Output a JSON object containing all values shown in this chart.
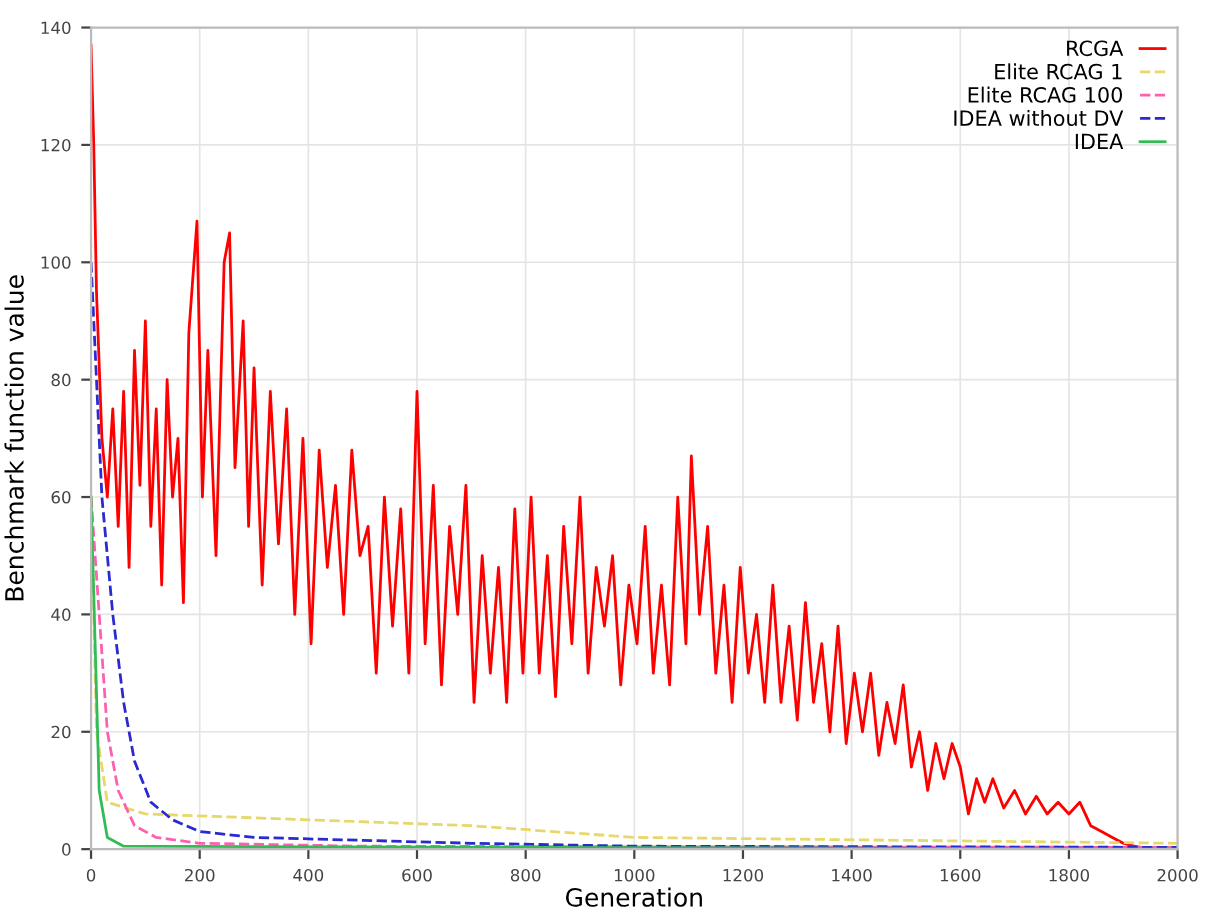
{
  "chart_data": {
    "type": "line",
    "xlabel": "Generation",
    "ylabel": "Benchmark function value",
    "xlim": [
      0,
      2000
    ],
    "xticks": [
      0,
      200,
      400,
      600,
      800,
      1000,
      1200,
      1400,
      1600,
      1800,
      2000
    ],
    "ylim": [
      0,
      140
    ],
    "yticks": [
      0,
      20,
      40,
      60,
      80,
      100,
      120,
      140
    ],
    "grid": true,
    "legend": "top right",
    "series": [
      {
        "name": "RCGA",
        "color": "#ff0000",
        "line_style": "solid",
        "x": [
          0,
          5,
          10,
          20,
          30,
          40,
          50,
          60,
          70,
          80,
          90,
          100,
          110,
          120,
          130,
          140,
          150,
          160,
          170,
          180,
          195,
          205,
          215,
          230,
          245,
          255,
          265,
          280,
          290,
          300,
          315,
          330,
          345,
          360,
          375,
          390,
          405,
          420,
          435,
          450,
          465,
          480,
          495,
          510,
          525,
          540,
          555,
          570,
          585,
          600,
          615,
          630,
          645,
          660,
          675,
          690,
          705,
          720,
          735,
          750,
          765,
          780,
          795,
          810,
          825,
          840,
          855,
          870,
          885,
          900,
          915,
          930,
          945,
          960,
          975,
          990,
          1005,
          1020,
          1035,
          1050,
          1065,
          1080,
          1095,
          1105,
          1120,
          1135,
          1150,
          1165,
          1180,
          1195,
          1210,
          1225,
          1240,
          1255,
          1270,
          1285,
          1300,
          1315,
          1330,
          1345,
          1360,
          1375,
          1390,
          1405,
          1420,
          1435,
          1450,
          1465,
          1480,
          1495,
          1510,
          1525,
          1540,
          1555,
          1570,
          1585,
          1600,
          1615,
          1630,
          1645,
          1660,
          1680,
          1700,
          1720,
          1740,
          1760,
          1780,
          1800,
          1820,
          1840,
          1860,
          1880,
          1900,
          1920,
          1950,
          2000
        ],
        "values": [
          137,
          120,
          95,
          70,
          60,
          75,
          55,
          78,
          48,
          85,
          62,
          90,
          55,
          75,
          45,
          80,
          60,
          70,
          42,
          88,
          107,
          60,
          85,
          50,
          100,
          105,
          65,
          90,
          55,
          82,
          45,
          78,
          52,
          75,
          40,
          70,
          35,
          68,
          48,
          62,
          40,
          68,
          50,
          55,
          30,
          60,
          38,
          58,
          30,
          78,
          35,
          62,
          28,
          55,
          40,
          62,
          25,
          50,
          30,
          48,
          25,
          58,
          30,
          60,
          30,
          50,
          26,
          55,
          35,
          60,
          30,
          48,
          38,
          50,
          28,
          45,
          35,
          55,
          30,
          45,
          28,
          60,
          35,
          67,
          40,
          55,
          30,
          45,
          25,
          48,
          30,
          40,
          25,
          45,
          25,
          38,
          22,
          42,
          25,
          35,
          20,
          38,
          18,
          30,
          20,
          30,
          16,
          25,
          18,
          28,
          14,
          20,
          10,
          18,
          12,
          18,
          14,
          6,
          12,
          8,
          12,
          7,
          10,
          6,
          9,
          6,
          8,
          6,
          8,
          4,
          3,
          2,
          1,
          0.5,
          0,
          0
        ]
      },
      {
        "name": "Elite RCAG 1",
        "color": "#e6d86a",
        "line_style": "dashed",
        "x": [
          0,
          10,
          30,
          100,
          400,
          700,
          1000,
          1500,
          2000
        ],
        "values": [
          60,
          20,
          8,
          6,
          5,
          4,
          2,
          1.5,
          1
        ]
      },
      {
        "name": "Elite RCAG 100",
        "color": "#ff5fb0",
        "line_style": "dashed",
        "x": [
          0,
          30,
          50,
          80,
          120,
          200,
          500,
          1000,
          2000
        ],
        "values": [
          60,
          20,
          10,
          4,
          2,
          1,
          0.5,
          0.4,
          0.3
        ]
      },
      {
        "name": "IDEA without DV",
        "color": "#2a2ad0",
        "line_style": "dashed",
        "x": [
          0,
          10,
          20,
          40,
          60,
          80,
          110,
          150,
          200,
          300,
          500,
          700,
          1000,
          2000
        ],
        "values": [
          100,
          80,
          60,
          40,
          25,
          15,
          8,
          5,
          3,
          2,
          1.5,
          1,
          0.5,
          0.3
        ]
      },
      {
        "name": "IDEA",
        "color": "#33bb55",
        "line_style": "solid",
        "x": [
          0,
          15,
          30,
          60,
          2000
        ],
        "values": [
          60,
          10,
          2,
          0.5,
          0
        ]
      }
    ]
  }
}
